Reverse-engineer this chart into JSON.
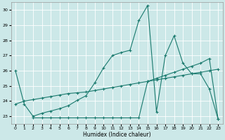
{
  "background_color": "#cce8e8",
  "line_color": "#1a7a6e",
  "xlabel": "Humidex (Indice chaleur)",
  "xlim": [
    -0.5,
    23.5
  ],
  "ylim": [
    22.5,
    30.5
  ],
  "yticks": [
    23,
    24,
    25,
    26,
    27,
    28,
    29,
    30
  ],
  "xticks": [
    0,
    1,
    2,
    3,
    4,
    5,
    6,
    7,
    8,
    9,
    10,
    11,
    12,
    13,
    14,
    15,
    16,
    17,
    18,
    19,
    20,
    21,
    22,
    23
  ],
  "s1_x": [
    0,
    1,
    2,
    3,
    4,
    5,
    6,
    7,
    8,
    9,
    10,
    11,
    12,
    13,
    14,
    15,
    16,
    17,
    18,
    19,
    20,
    21,
    22,
    23
  ],
  "s1_y": [
    26.0,
    23.8,
    23.0,
    23.2,
    23.35,
    23.5,
    23.7,
    24.05,
    24.35,
    25.2,
    26.2,
    27.0,
    27.2,
    27.35,
    29.3,
    30.3,
    23.3,
    27.0,
    28.3,
    26.5,
    25.8,
    25.8,
    24.8,
    22.8
  ],
  "s2_x": [
    0,
    1,
    2,
    3,
    4,
    5,
    6,
    7,
    8,
    9,
    10,
    11,
    12,
    13,
    14,
    15,
    16,
    17,
    18,
    19,
    20,
    21,
    22,
    23
  ],
  "s2_y": [
    23.8,
    24.0,
    24.1,
    24.2,
    24.3,
    24.4,
    24.5,
    24.55,
    24.6,
    24.7,
    24.8,
    24.9,
    25.0,
    25.1,
    25.2,
    25.3,
    25.4,
    25.5,
    25.6,
    25.7,
    25.8,
    25.9,
    26.0,
    26.1
  ],
  "s3_x": [
    2,
    3,
    4,
    5,
    6,
    7,
    8,
    9,
    10,
    11,
    12,
    13,
    14,
    15,
    16,
    17,
    18,
    19,
    20,
    21,
    22,
    23
  ],
  "s3_y": [
    22.9,
    22.9,
    22.9,
    22.9,
    22.9,
    22.9,
    22.9,
    22.9,
    22.9,
    22.9,
    22.9,
    22.9,
    22.9,
    25.3,
    25.5,
    25.7,
    25.9,
    26.1,
    26.3,
    26.5,
    26.8,
    22.8
  ]
}
